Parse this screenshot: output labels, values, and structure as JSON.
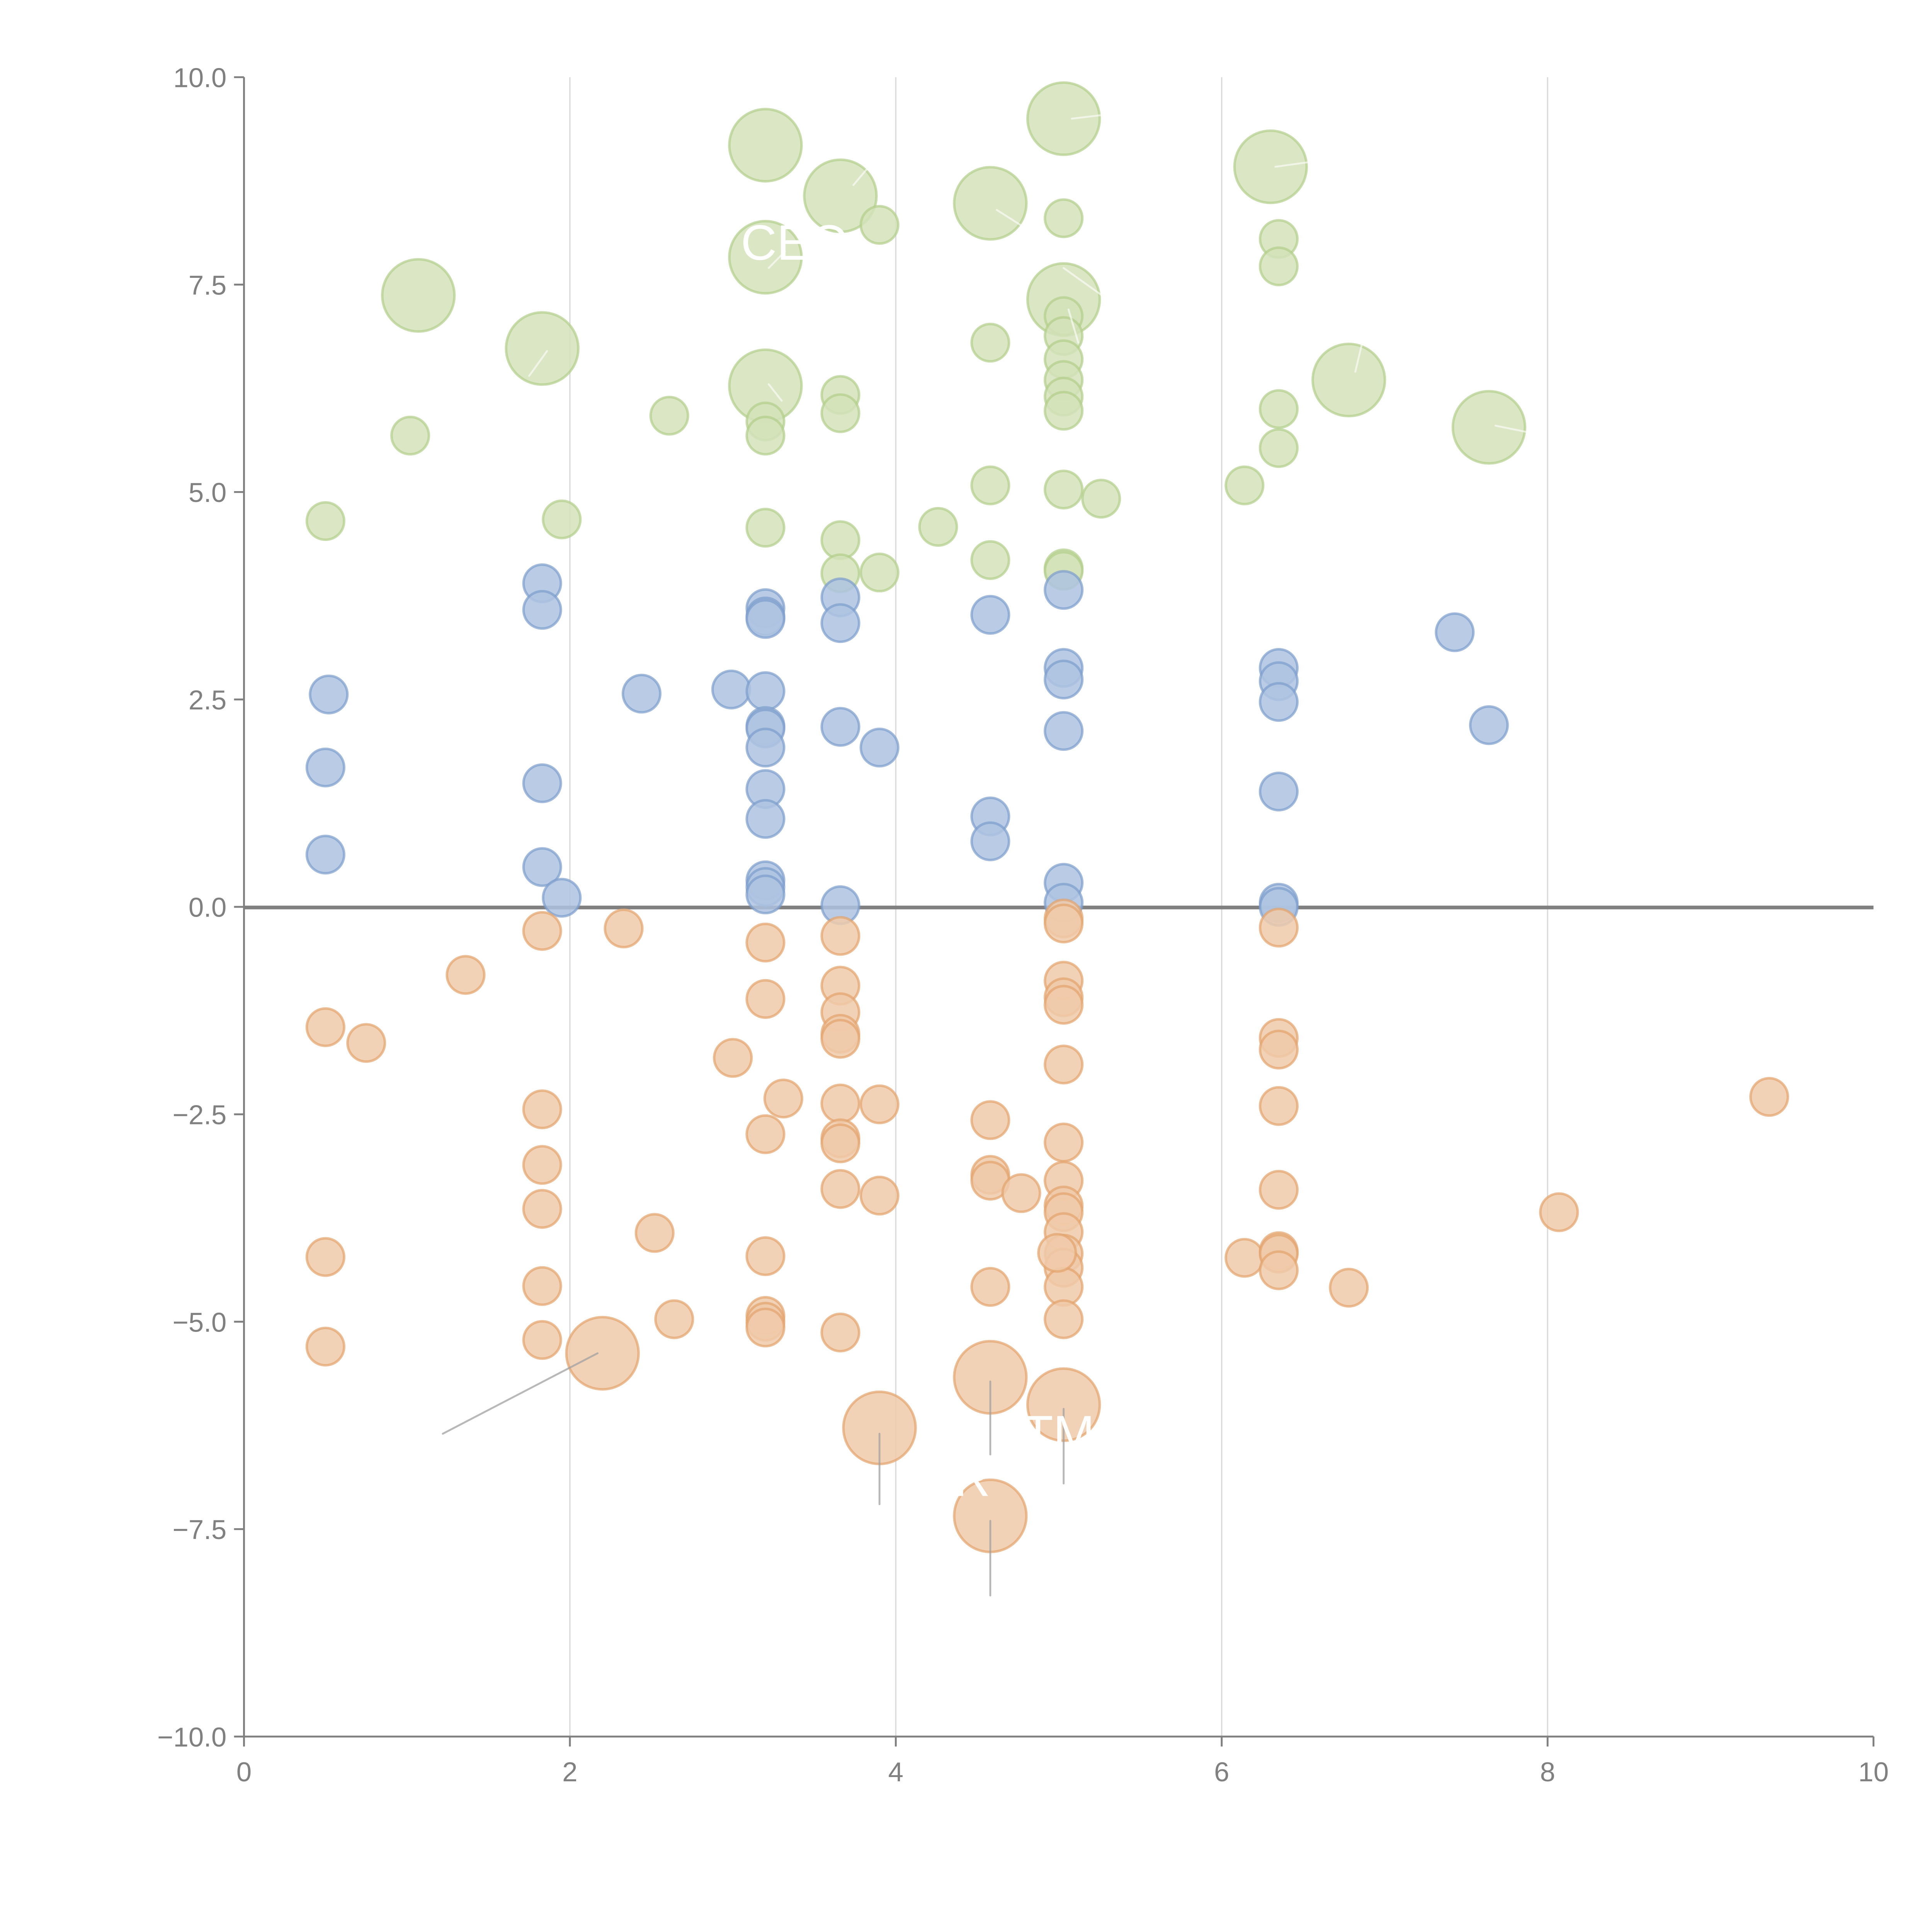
{
  "chart_data": {
    "type": "scatter",
    "title": "",
    "xlabel": "",
    "ylabel": "",
    "xlim": [
      0,
      10
    ],
    "ylim": [
      -10,
      10
    ],
    "x_ticks": [
      "0",
      "2",
      "4",
      "6",
      "8",
      "10"
    ],
    "x_tick_values": [
      0,
      2,
      4,
      6,
      8,
      10
    ],
    "y_ticks": [
      "10.0",
      "7.5",
      "5.0",
      "2.5",
      "0.0",
      "−2.5",
      "−5.0",
      "−7.5",
      "−10.0"
    ],
    "y_tick_values": [
      10,
      7.5,
      5,
      2.5,
      0,
      -2.5,
      -5,
      -7.5,
      -10
    ],
    "grid": "vertical",
    "zero_line": true,
    "legend": "none",
    "colors": {
      "green_fill": "#d3e2ba",
      "green_stroke": "#b2cd8a",
      "blue_fill": "#aec3e0",
      "blue_stroke": "#7c9ccc",
      "orange_fill": "#f0caa9",
      "orange_stroke": "#e2a36c",
      "axis": "#808080",
      "grid": "#d9d9d9",
      "label": "#ffffff"
    },
    "series": [
      {
        "name": "green",
        "points": [
          [
            0.5,
            4.65,
            1
          ],
          [
            1.02,
            5.68,
            1
          ],
          [
            1.07,
            7.37,
            2
          ],
          [
            1.83,
            6.73,
            2
          ],
          [
            1.95,
            4.67,
            1
          ],
          [
            2.61,
            5.92,
            1
          ],
          [
            3.2,
            9.18,
            2
          ],
          [
            3.2,
            7.83,
            2
          ],
          [
            3.2,
            6.28,
            2
          ],
          [
            3.2,
            5.85,
            1
          ],
          [
            3.2,
            5.68,
            1
          ],
          [
            3.2,
            4.57,
            1
          ],
          [
            3.66,
            8.57,
            2
          ],
          [
            3.66,
            6.17,
            1
          ],
          [
            3.66,
            5.95,
            1
          ],
          [
            3.66,
            4.42,
            1
          ],
          [
            3.66,
            4.02,
            1
          ],
          [
            3.9,
            8.22,
            1
          ],
          [
            3.9,
            4.03,
            1
          ],
          [
            4.26,
            4.58,
            1
          ],
          [
            4.58,
            8.48,
            2
          ],
          [
            4.58,
            6.8,
            1
          ],
          [
            4.58,
            5.08,
            1
          ],
          [
            4.58,
            4.18,
            1
          ],
          [
            5.03,
            9.5,
            2
          ],
          [
            5.03,
            8.3,
            1
          ],
          [
            5.03,
            7.32,
            2
          ],
          [
            5.03,
            7.12,
            1
          ],
          [
            5.03,
            6.88,
            1
          ],
          [
            5.03,
            6.6,
            1
          ],
          [
            5.03,
            6.35,
            1
          ],
          [
            5.03,
            6.15,
            1
          ],
          [
            5.03,
            5.98,
            1
          ],
          [
            5.03,
            5.03,
            1
          ],
          [
            5.03,
            4.08,
            1
          ],
          [
            5.03,
            4.05,
            1
          ],
          [
            5.26,
            4.92,
            1
          ],
          [
            6.14,
            5.08,
            1
          ],
          [
            6.3,
            8.92,
            2
          ],
          [
            6.35,
            8.05,
            1
          ],
          [
            6.35,
            7.72,
            1
          ],
          [
            6.35,
            6.0,
            1
          ],
          [
            6.35,
            5.53,
            1
          ],
          [
            6.78,
            6.35,
            2
          ],
          [
            7.64,
            5.78,
            2
          ]
        ]
      },
      {
        "name": "blue",
        "points": [
          [
            0.5,
            1.68,
            1
          ],
          [
            0.5,
            0.63,
            1
          ],
          [
            0.52,
            2.56,
            1
          ],
          [
            1.83,
            3.9,
            1
          ],
          [
            1.83,
            3.58,
            1
          ],
          [
            1.83,
            1.49,
            1
          ],
          [
            1.83,
            0.48,
            1
          ],
          [
            1.95,
            0.11,
            1
          ],
          [
            2.44,
            2.57,
            1
          ],
          [
            2.99,
            2.62,
            1
          ],
          [
            3.2,
            3.6,
            1
          ],
          [
            3.2,
            3.5,
            1
          ],
          [
            3.2,
            3.47,
            1
          ],
          [
            3.2,
            2.6,
            1
          ],
          [
            3.2,
            2.18,
            1
          ],
          [
            3.2,
            2.15,
            1
          ],
          [
            3.2,
            1.92,
            1
          ],
          [
            3.2,
            1.42,
            1
          ],
          [
            3.2,
            1.06,
            1
          ],
          [
            3.2,
            0.32,
            1
          ],
          [
            3.2,
            0.24,
            1
          ],
          [
            3.2,
            0.15,
            1
          ],
          [
            3.66,
            3.73,
            1
          ],
          [
            3.66,
            3.42,
            1
          ],
          [
            3.66,
            2.17,
            1
          ],
          [
            3.66,
            0.02,
            1
          ],
          [
            3.9,
            1.92,
            1
          ],
          [
            4.58,
            3.52,
            1
          ],
          [
            4.58,
            1.09,
            1
          ],
          [
            4.58,
            0.79,
            1
          ],
          [
            5.03,
            3.82,
            1
          ],
          [
            5.03,
            2.88,
            1
          ],
          [
            5.03,
            2.74,
            1
          ],
          [
            5.03,
            2.12,
            1
          ],
          [
            5.03,
            0.29,
            1
          ],
          [
            5.03,
            0.05,
            1
          ],
          [
            6.35,
            2.88,
            1
          ],
          [
            6.35,
            2.72,
            1
          ],
          [
            6.35,
            2.47,
            1
          ],
          [
            6.35,
            1.39,
            1
          ],
          [
            6.35,
            0.05,
            1
          ],
          [
            6.35,
            0.0,
            1
          ],
          [
            7.43,
            3.31,
            1
          ],
          [
            7.64,
            2.19,
            1
          ]
        ]
      },
      {
        "name": "orange",
        "points": [
          [
            0.5,
            -1.45,
            1
          ],
          [
            0.5,
            -4.22,
            1
          ],
          [
            0.5,
            -5.3,
            1
          ],
          [
            0.75,
            -1.64,
            1
          ],
          [
            1.36,
            -0.82,
            1
          ],
          [
            1.83,
            -0.29,
            1
          ],
          [
            1.83,
            -2.44,
            1
          ],
          [
            1.83,
            -3.11,
            1
          ],
          [
            1.83,
            -3.64,
            1
          ],
          [
            1.83,
            -4.57,
            1
          ],
          [
            1.83,
            -5.22,
            1
          ],
          [
            2.2,
            -5.38,
            2
          ],
          [
            2.33,
            -0.26,
            1
          ],
          [
            2.52,
            -3.93,
            1
          ],
          [
            2.64,
            -4.97,
            1
          ],
          [
            3.0,
            -1.82,
            1
          ],
          [
            3.2,
            -0.43,
            1
          ],
          [
            3.2,
            -1.11,
            1
          ],
          [
            3.2,
            -2.74,
            1
          ],
          [
            3.2,
            -4.21,
            1
          ],
          [
            3.2,
            -4.93,
            1
          ],
          [
            3.2,
            -5.0,
            1
          ],
          [
            3.2,
            -5.07,
            1
          ],
          [
            3.31,
            -2.31,
            1
          ],
          [
            3.66,
            -0.35,
            1
          ],
          [
            3.66,
            -0.95,
            1
          ],
          [
            3.66,
            -1.27,
            1
          ],
          [
            3.66,
            -1.53,
            1
          ],
          [
            3.66,
            -1.59,
            1
          ],
          [
            3.66,
            -2.37,
            1
          ],
          [
            3.66,
            -2.79,
            1
          ],
          [
            3.66,
            -2.85,
            1
          ],
          [
            3.66,
            -3.4,
            1
          ],
          [
            3.66,
            -5.13,
            1
          ],
          [
            3.9,
            -2.38,
            1
          ],
          [
            3.9,
            -3.48,
            1
          ],
          [
            3.9,
            -6.28,
            2
          ],
          [
            4.58,
            -2.57,
            1
          ],
          [
            4.58,
            -3.23,
            1
          ],
          [
            4.58,
            -3.3,
            1
          ],
          [
            4.58,
            -4.58,
            1
          ],
          [
            4.58,
            -5.67,
            2
          ],
          [
            4.58,
            -7.34,
            2
          ],
          [
            4.77,
            -3.45,
            1
          ],
          [
            5.03,
            -0.14,
            1
          ],
          [
            5.03,
            -0.2,
            1
          ],
          [
            5.03,
            -0.89,
            1
          ],
          [
            5.03,
            -1.09,
            1
          ],
          [
            5.03,
            -1.18,
            1
          ],
          [
            5.03,
            -1.9,
            1
          ],
          [
            5.03,
            -2.84,
            1
          ],
          [
            5.03,
            -3.3,
            1
          ],
          [
            5.03,
            -3.6,
            1
          ],
          [
            5.03,
            -3.68,
            1
          ],
          [
            5.03,
            -3.92,
            1
          ],
          [
            5.03,
            -4.18,
            1
          ],
          [
            5.03,
            -4.35,
            1
          ],
          [
            5.03,
            -4.58,
            1
          ],
          [
            5.03,
            -4.97,
            1
          ],
          [
            5.03,
            -6.0,
            2
          ],
          [
            4.99,
            -4.17,
            1
          ],
          [
            6.14,
            -4.23,
            1
          ],
          [
            6.35,
            -0.25,
            1
          ],
          [
            6.35,
            -1.58,
            1
          ],
          [
            6.35,
            -1.72,
            1
          ],
          [
            6.35,
            -2.4,
            1
          ],
          [
            6.35,
            -3.41,
            1
          ],
          [
            6.35,
            -4.15,
            1
          ],
          [
            6.35,
            -4.18,
            1
          ],
          [
            6.35,
            -4.38,
            1
          ],
          [
            6.78,
            -4.59,
            1
          ],
          [
            8.07,
            -3.68,
            1
          ],
          [
            9.36,
            -2.29,
            1
          ]
        ]
      }
    ],
    "leader_lines": [
      [
        2.17,
        -5.38,
        1.22,
        -6.35
      ],
      [
        3.9,
        -6.35,
        3.9,
        -7.2
      ],
      [
        4.58,
        -5.72,
        4.58,
        -6.6
      ],
      [
        5.03,
        -6.05,
        5.03,
        -6.95
      ],
      [
        4.58,
        -7.4,
        4.58,
        -8.3
      ],
      [
        3.74,
        8.7,
        3.86,
        8.98
      ],
      [
        4.62,
        8.4,
        4.78,
        8.2
      ],
      [
        5.08,
        9.5,
        5.38,
        9.57
      ],
      [
        5.03,
        7.7,
        5.28,
        7.35
      ],
      [
        5.06,
        7.2,
        5.12,
        6.8
      ],
      [
        6.33,
        8.92,
        6.55,
        8.98
      ],
      [
        6.82,
        6.45,
        6.86,
        6.78
      ],
      [
        7.68,
        5.8,
        7.88,
        5.72
      ],
      [
        1.75,
        6.4,
        1.86,
        6.7
      ],
      [
        3.22,
        6.3,
        3.3,
        6.1
      ],
      [
        3.22,
        7.7,
        3.32,
        7.9
      ]
    ],
    "labels": [
      {
        "text": "CEO",
        "x": 3.38,
        "y": 7.8
      },
      {
        "text": "TM",
        "x": 5.0,
        "y": -6.55
      },
      {
        "text": "R",
        "x": 4.47,
        "y": -7.1
      }
    ]
  }
}
